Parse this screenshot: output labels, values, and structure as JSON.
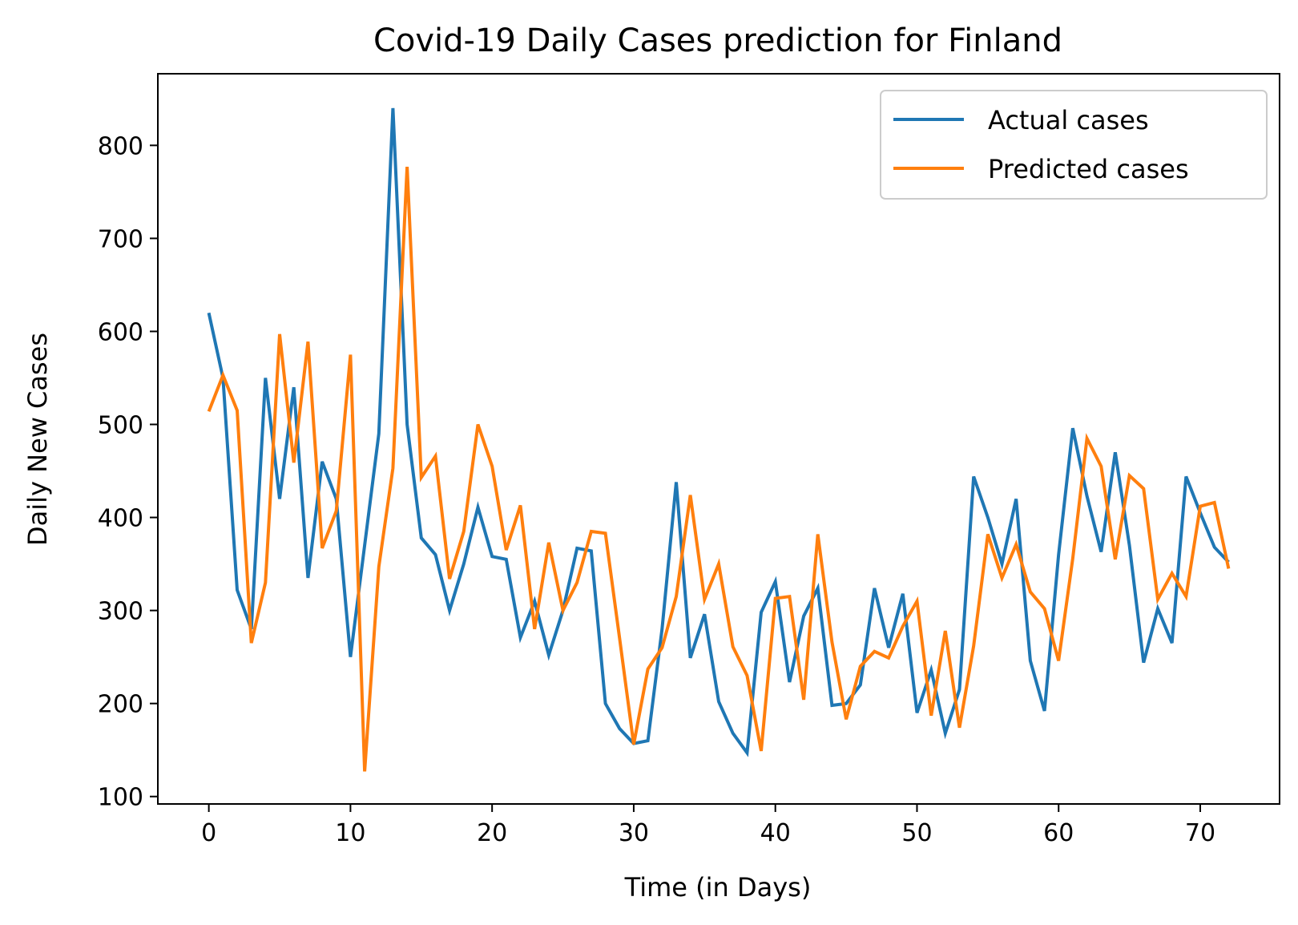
{
  "chart_data": {
    "type": "line",
    "title": "Covid-19 Daily Cases prediction for Finland",
    "xlabel": "Time (in Days)",
    "ylabel": "Daily New Cases",
    "xlim": [
      -3.6,
      75.6
    ],
    "ylim": [
      92,
      877
    ],
    "xticks": [
      0,
      10,
      20,
      30,
      40,
      50,
      60,
      70
    ],
    "yticks": [
      100,
      200,
      300,
      400,
      500,
      600,
      700,
      800
    ],
    "grid": false,
    "legend_position": "top-right",
    "x": [
      0,
      1,
      2,
      3,
      4,
      5,
      6,
      7,
      8,
      9,
      10,
      11,
      12,
      13,
      14,
      15,
      16,
      17,
      18,
      19,
      20,
      21,
      22,
      23,
      24,
      25,
      26,
      27,
      28,
      29,
      30,
      31,
      32,
      33,
      34,
      35,
      36,
      37,
      38,
      39,
      40,
      41,
      42,
      43,
      44,
      45,
      46,
      47,
      48,
      49,
      50,
      51,
      52,
      53,
      54,
      55,
      56,
      57,
      58,
      59,
      60,
      61,
      62,
      63,
      64,
      65,
      66,
      67,
      68,
      69,
      70,
      71,
      72
    ],
    "series": [
      {
        "name": "Actual cases",
        "color": "#1f77b4",
        "values": [
          620,
          550,
          322,
          280,
          550,
          420,
          540,
          335,
          460,
          420,
          250,
          370,
          490,
          840,
          500,
          378,
          360,
          300,
          350,
          411,
          358,
          355,
          271,
          310,
          252,
          300,
          367,
          364,
          200,
          173,
          157,
          160,
          280,
          438,
          249,
          296,
          202,
          168,
          147,
          298,
          331,
          223,
          294,
          324,
          198,
          200,
          220,
          324,
          260,
          318,
          190,
          236,
          168,
          215,
          444,
          400,
          350,
          420,
          246,
          192,
          360,
          496,
          423,
          363,
          470,
          370,
          244,
          302,
          265,
          444,
          405,
          368,
          352
        ]
      },
      {
        "name": "Predicted cases",
        "color": "#ff7f0e",
        "values": [
          514,
          553,
          515,
          265,
          330,
          597,
          459,
          589,
          367,
          407,
          575,
          127,
          347,
          453,
          777,
          443,
          466,
          334,
          385,
          500,
          455,
          365,
          413,
          280,
          373,
          300,
          330,
          385,
          383,
          270,
          156,
          237,
          260,
          315,
          424,
          312,
          350,
          261,
          230,
          149,
          313,
          315,
          204,
          382,
          266,
          183,
          240,
          256,
          249,
          283,
          310,
          187,
          278,
          174,
          262,
          382,
          335,
          371,
          320,
          302,
          246,
          356,
          485,
          455,
          355,
          445,
          431,
          312,
          340,
          315,
          412,
          416,
          345
        ]
      }
    ]
  }
}
